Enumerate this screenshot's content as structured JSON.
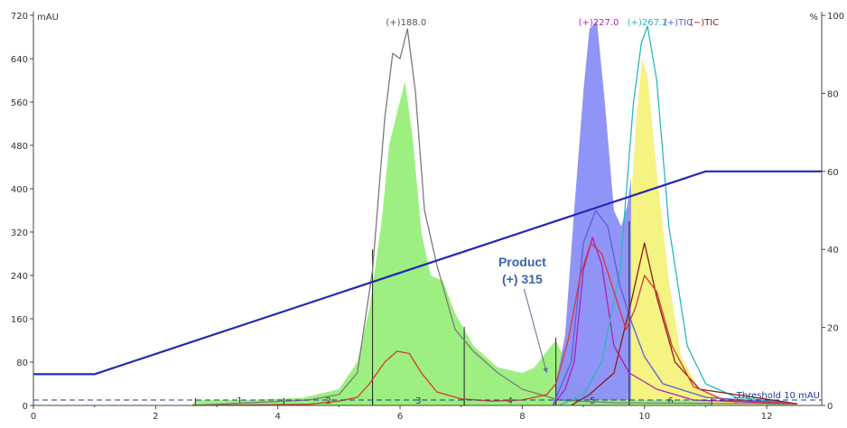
{
  "chart_data": {
    "type": "line",
    "x_range": [
      0,
      12.9
    ],
    "x_ticks": [
      0,
      2,
      4,
      6,
      8,
      10,
      12
    ],
    "y_left": {
      "unit": "mAU",
      "range": [
        0,
        720
      ],
      "ticks": [
        0,
        80,
        160,
        240,
        320,
        400,
        480,
        560,
        640,
        720
      ]
    },
    "y_right": {
      "unit": "%",
      "range": [
        0,
        100
      ],
      "ticks": [
        0,
        20,
        40,
        60,
        80,
        100
      ]
    },
    "grid": false,
    "fractions": {
      "color": "#99ee7a",
      "labels": [
        "1",
        "2",
        "3",
        "4",
        "5",
        "6",
        "7"
      ],
      "cuts": [
        2.65,
        4.1,
        5.55,
        7.05,
        8.55,
        9.75,
        11.1
      ]
    },
    "series": [
      {
        "color": "#99ee7a",
        "style": "filled",
        "points": [
          [
            2.6,
            4
          ],
          [
            3.5,
            10
          ],
          [
            4.4,
            14
          ],
          [
            5,
            30
          ],
          [
            5.3,
            80
          ],
          [
            5.5,
            180
          ],
          [
            5.7,
            340
          ],
          [
            5.82,
            480
          ],
          [
            5.95,
            540
          ],
          [
            6.08,
            598
          ],
          [
            6.2,
            500
          ],
          [
            6.35,
            320
          ],
          [
            6.5,
            240
          ],
          [
            6.7,
            230
          ],
          [
            6.9,
            170
          ],
          [
            7.2,
            110
          ],
          [
            7.6,
            70
          ],
          [
            8.0,
            60
          ],
          [
            8.2,
            70
          ],
          [
            8.4,
            100
          ],
          [
            8.55,
            120
          ],
          [
            8.8,
            60
          ],
          [
            9.2,
            20
          ],
          [
            9.8,
            8
          ],
          [
            10.5,
            5
          ],
          [
            12.5,
            3
          ]
        ]
      },
      {
        "color": "#8a8ef5",
        "style": "filled",
        "points": [
          [
            8.55,
            40
          ],
          [
            8.7,
            130
          ],
          [
            8.85,
            360
          ],
          [
            9.0,
            580
          ],
          [
            9.1,
            695
          ],
          [
            9.22,
            710
          ],
          [
            9.35,
            560
          ],
          [
            9.5,
            360
          ],
          [
            9.62,
            330
          ],
          [
            9.72,
            370
          ],
          [
            9.78,
            420
          ]
        ]
      },
      {
        "color": "#f4f27a",
        "style": "filled",
        "points": [
          [
            9.78,
            380
          ],
          [
            9.86,
            520
          ],
          [
            9.96,
            640
          ],
          [
            10.05,
            610
          ],
          [
            10.2,
            430
          ],
          [
            10.4,
            230
          ],
          [
            10.6,
            90
          ],
          [
            10.9,
            30
          ],
          [
            11.3,
            10
          ],
          [
            12.0,
            3
          ]
        ]
      },
      {
        "name": "(+)188.0",
        "color": "#7a7a7a",
        "style": "line",
        "points": [
          [
            2.6,
            0
          ],
          [
            4.5,
            10
          ],
          [
            5.0,
            20
          ],
          [
            5.3,
            60
          ],
          [
            5.55,
            250
          ],
          [
            5.75,
            530
          ],
          [
            5.88,
            650
          ],
          [
            6.0,
            640
          ],
          [
            6.12,
            695
          ],
          [
            6.25,
            580
          ],
          [
            6.4,
            360
          ],
          [
            6.6,
            260
          ],
          [
            6.9,
            140
          ],
          [
            7.2,
            100
          ],
          [
            7.6,
            60
          ],
          [
            8.0,
            30
          ],
          [
            8.6,
            10
          ],
          [
            9.5,
            5
          ],
          [
            12.5,
            3
          ]
        ]
      },
      {
        "name": "(+)227.0",
        "color": "#b01fb5",
        "style": "line",
        "points": [
          [
            8.5,
            0
          ],
          [
            8.7,
            30
          ],
          [
            8.85,
            80
          ],
          [
            9.0,
            250
          ],
          [
            9.15,
            310
          ],
          [
            9.3,
            260
          ],
          [
            9.5,
            110
          ],
          [
            9.75,
            60
          ],
          [
            10.2,
            30
          ],
          [
            10.8,
            10
          ],
          [
            12.5,
            3
          ]
        ]
      },
      {
        "name": "(+)267.2",
        "color": "#2bb8b8",
        "style": "line",
        "points": [
          [
            8.6,
            0
          ],
          [
            9.0,
            20
          ],
          [
            9.3,
            80
          ],
          [
            9.6,
            250
          ],
          [
            9.82,
            560
          ],
          [
            9.95,
            670
          ],
          [
            10.05,
            700
          ],
          [
            10.2,
            600
          ],
          [
            10.4,
            330
          ],
          [
            10.7,
            110
          ],
          [
            11.0,
            40
          ],
          [
            11.5,
            15
          ],
          [
            12.5,
            3
          ]
        ]
      },
      {
        "name": "(+)TIC",
        "color": "#5a5ed8",
        "style": "line",
        "points": [
          [
            8.5,
            0
          ],
          [
            8.8,
            80
          ],
          [
            9.0,
            300
          ],
          [
            9.2,
            360
          ],
          [
            9.4,
            330
          ],
          [
            9.6,
            220
          ],
          [
            9.8,
            150
          ],
          [
            10.0,
            90
          ],
          [
            10.3,
            40
          ],
          [
            11.0,
            15
          ],
          [
            12.5,
            3
          ]
        ]
      },
      {
        "name": "(−)TIC",
        "color": "#8b1a1a",
        "style": "line",
        "points": [
          [
            8.8,
            0
          ],
          [
            9.1,
            20
          ],
          [
            9.5,
            60
          ],
          [
            9.8,
            200
          ],
          [
            10.0,
            300
          ],
          [
            10.2,
            200
          ],
          [
            10.5,
            80
          ],
          [
            10.9,
            30
          ],
          [
            12.5,
            3
          ]
        ]
      },
      {
        "color": "#d23a3a",
        "style": "line",
        "points": [
          [
            2.6,
            0
          ],
          [
            4.5,
            2
          ],
          [
            5.0,
            8
          ],
          [
            5.3,
            15
          ],
          [
            5.5,
            40
          ],
          [
            5.75,
            80
          ],
          [
            5.95,
            100
          ],
          [
            6.15,
            96
          ],
          [
            6.35,
            60
          ],
          [
            6.6,
            25
          ],
          [
            7.0,
            12
          ],
          [
            7.5,
            8
          ],
          [
            8.0,
            10
          ],
          [
            8.4,
            20
          ],
          [
            8.55,
            40
          ],
          [
            8.75,
            120
          ],
          [
            8.95,
            240
          ],
          [
            9.12,
            300
          ],
          [
            9.3,
            280
          ],
          [
            9.5,
            210
          ],
          [
            9.7,
            140
          ],
          [
            9.85,
            180
          ],
          [
            10.0,
            240
          ],
          [
            10.2,
            210
          ],
          [
            10.45,
            110
          ],
          [
            10.8,
            35
          ],
          [
            11.3,
            10
          ],
          [
            12.5,
            3
          ]
        ]
      },
      {
        "color": "#2626b8",
        "style": "line",
        "axis": "right",
        "points": [
          [
            0,
            8
          ],
          [
            1.0,
            8
          ],
          [
            11.0,
            60
          ],
          [
            12.9,
            60
          ]
        ]
      }
    ],
    "peak_labels": [
      {
        "text": "(+)188.0",
        "x": 6.1,
        "color": "#555555"
      },
      {
        "text": "(+)227.0",
        "x": 9.25,
        "color": "#b01fb5"
      },
      {
        "text": "(+)267.2",
        "x": 10.05,
        "color": "#2bb8b8"
      },
      {
        "text": "(+)TIC",
        "x": 10.55,
        "color": "#5a5ed8"
      },
      {
        "text": "(−)TIC",
        "x": 10.98,
        "color": "#8b1a1a"
      }
    ],
    "annotation": {
      "line1": "Product",
      "line2": "(+) 315",
      "arrow_to": [
        8.4,
        60
      ]
    },
    "threshold": {
      "text": "Threshold 10 mAU",
      "value": 10,
      "color": "#1f3c8f"
    }
  }
}
